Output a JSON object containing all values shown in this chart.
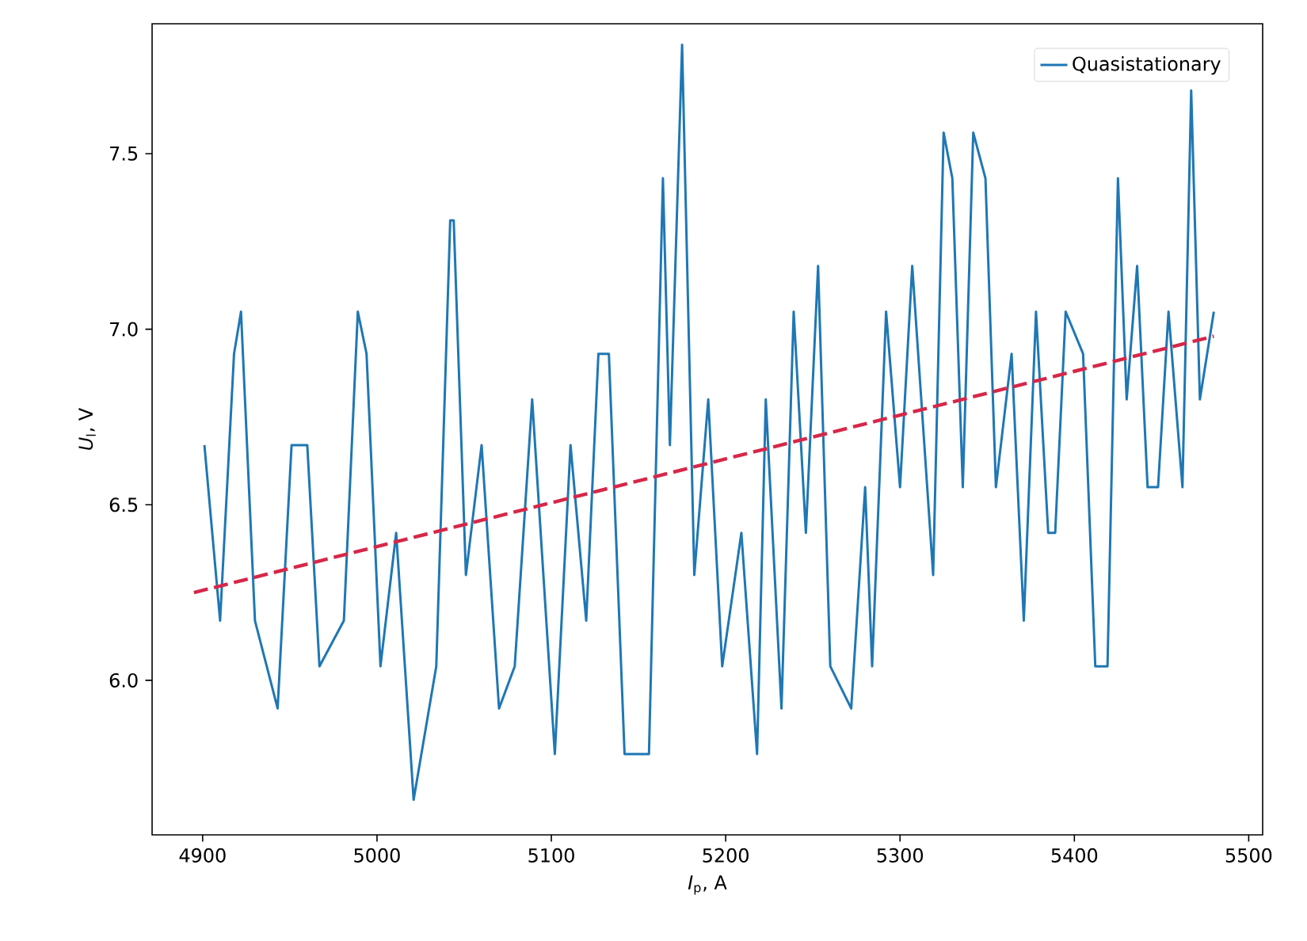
{
  "chart_data": {
    "type": "line",
    "xlabel": "*I*$_{p}$, A",
    "ylabel": "*U*$_{l}$, V",
    "xlim": [
      4871,
      5508
    ],
    "ylim": [
      5.56,
      7.87
    ],
    "xticks": [
      4900,
      5000,
      5100,
      5200,
      5300,
      5400,
      5500
    ],
    "yticks": [
      {
        "value": 6,
        "label": "6.0"
      },
      6.5,
      {
        "value": 7,
        "label": "7.0"
      },
      7.5
    ],
    "legend": "top right",
    "grid": false,
    "series": [
      {
        "name": "Quasistationary",
        "color": "#1f77b4",
        "line_style": "solid",
        "x": [
          4901,
          4910,
          4918,
          4922,
          4930,
          4943,
          4951,
          4960,
          4967,
          4981,
          4989,
          4994,
          5002,
          5011,
          5021,
          5034,
          5042,
          5044,
          5051,
          5060,
          5070,
          5079,
          5089,
          5102,
          5111,
          5120,
          5127,
          5133,
          5142,
          5156,
          5164,
          5168,
          5175,
          5182,
          5190,
          5198,
          5209,
          5218,
          5223,
          5232,
          5239,
          5246,
          5253,
          5260,
          5272,
          5280,
          5284,
          5292,
          5300,
          5307,
          5319,
          5325,
          5330,
          5336,
          5342,
          5349,
          5355,
          5364,
          5371,
          5378,
          5385,
          5389,
          5395,
          5405,
          5412,
          5419,
          5425,
          5430,
          5436,
          5442,
          5448,
          5454,
          5462,
          5467,
          5472,
          5480
        ],
        "values": [
          6.67,
          6.17,
          6.93,
          7.05,
          6.17,
          5.92,
          6.67,
          6.67,
          6.04,
          6.17,
          7.05,
          6.93,
          6.04,
          6.42,
          5.66,
          6.04,
          7.31,
          7.31,
          6.3,
          6.67,
          5.92,
          6.04,
          6.8,
          5.79,
          6.67,
          6.17,
          6.93,
          6.93,
          5.79,
          5.79,
          7.43,
          6.67,
          7.81,
          6.3,
          6.8,
          6.04,
          6.42,
          5.79,
          6.8,
          5.92,
          7.05,
          6.42,
          7.18,
          6.04,
          5.92,
          6.55,
          6.04,
          7.05,
          6.55,
          7.18,
          6.3,
          7.56,
          7.43,
          6.55,
          7.56,
          7.43,
          6.55,
          6.93,
          6.17,
          7.05,
          6.42,
          6.42,
          7.05,
          6.93,
          6.04,
          6.04,
          7.43,
          6.8,
          7.18,
          6.55,
          6.55,
          7.05,
          6.55,
          7.68,
          6.8,
          7.05
        ]
      },
      {
        "type": "line",
        "color": "#d62748",
        "line_style": "dashed",
        "x": [
          4895,
          5480
        ],
        "values": [
          6.25,
          6.98
        ]
      }
    ]
  }
}
